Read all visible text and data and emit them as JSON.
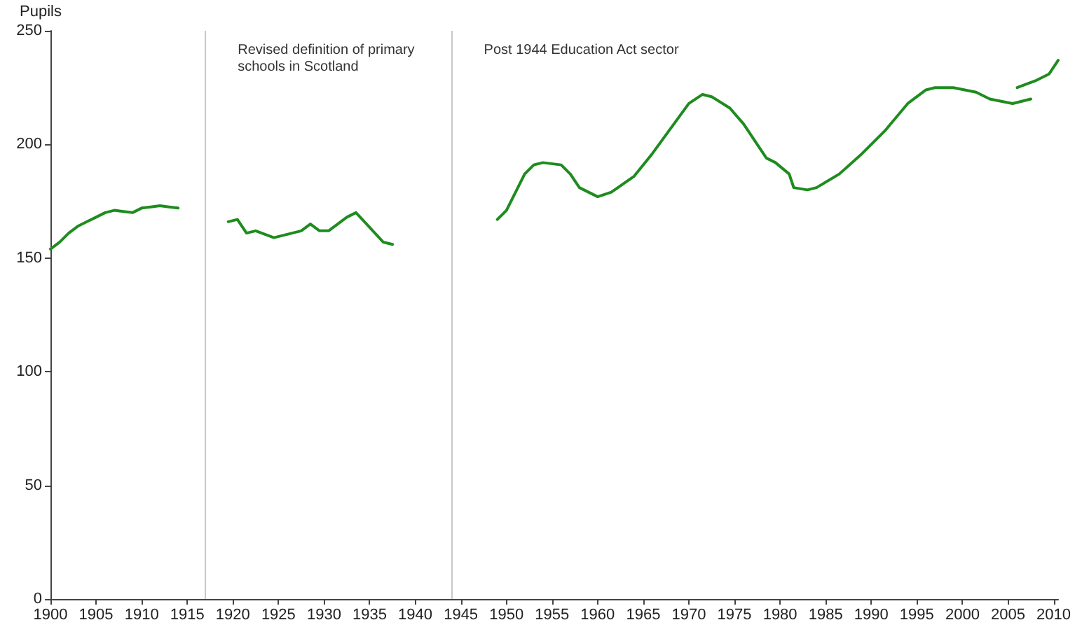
{
  "chart_data": {
    "type": "line",
    "ylabel": "Pupils",
    "xlim": [
      1900,
      2010.5
    ],
    "xticks": [
      1900,
      1905,
      1910,
      1915,
      1920,
      1925,
      1930,
      1935,
      1940,
      1945,
      1950,
      1955,
      1960,
      1965,
      1970,
      1975,
      1980,
      1985,
      1990,
      1995,
      2000,
      2005,
      2010
    ],
    "ylim": [
      0,
      250
    ],
    "yticks": [
      0,
      50,
      100,
      150,
      200,
      250
    ],
    "grid": false,
    "marker": "none",
    "line_style": "solid",
    "series": [
      {
        "color": "#1e8c1e",
        "x": [
          1900,
          1901,
          1902,
          1903,
          1904,
          1905,
          1906,
          1907,
          1908,
          1909,
          1910,
          1911,
          1912,
          1913,
          1914
        ],
        "values": [
          154,
          157,
          161,
          164,
          166,
          168,
          170,
          171,
          170.5,
          170,
          172,
          172.5,
          173,
          172.5,
          172
        ]
      },
      {
        "color": "#1e8c1e",
        "x": [
          1919.5,
          1920.5,
          1921.5,
          1922.5,
          1924.5,
          1926.5,
          1927.5,
          1928.5,
          1929.5,
          1930.5,
          1932.5,
          1933.5,
          1936.5,
          1937.5
        ],
        "values": [
          166,
          167,
          161,
          162,
          159,
          161,
          162,
          165,
          162,
          162,
          168,
          170,
          157,
          156
        ]
      },
      {
        "color": "#1e8c1e",
        "x": [
          1949,
          1950,
          1952,
          1953,
          1954,
          1956,
          1957,
          1958,
          1960,
          1961.5,
          1964,
          1966,
          1968,
          1970,
          1971.5,
          1972.5,
          1974.5,
          1976,
          1978.5,
          1979.5,
          1981,
          1981.5,
          1983,
          1984,
          1986.5,
          1989,
          1991.5,
          1994,
          1996,
          1997,
          1999,
          2001.5,
          2003,
          2005.5,
          2007.5
        ],
        "values": [
          167,
          171,
          187,
          191,
          192,
          191,
          187,
          181,
          177,
          179,
          186,
          196,
          207,
          218,
          222,
          221,
          216,
          209,
          194,
          192,
          187,
          181,
          180,
          181,
          187,
          196,
          206,
          218,
          224,
          225,
          225,
          223,
          220,
          218,
          220
        ]
      },
      {
        "color": "#1e8c1e",
        "x": [
          2006,
          2008,
          2009.5,
          2010.5
        ],
        "values": [
          225,
          228,
          231,
          237
        ]
      }
    ],
    "ref_lines": [
      {
        "axis": "x",
        "value": 1917,
        "label": "Revised definition of primary schools in Scotland",
        "color": "#c8c8c8"
      },
      {
        "axis": "x",
        "value": 1944,
        "label": "Post 1944 Education Act sector",
        "color": "#c8c8c8"
      }
    ]
  }
}
